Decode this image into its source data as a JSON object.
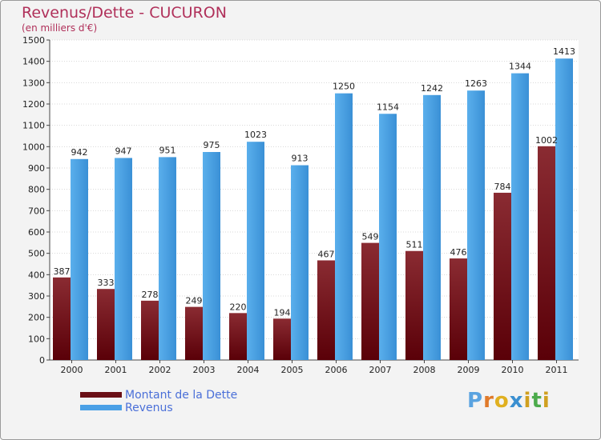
{
  "chart_data": {
    "type": "bar",
    "title": "Revenus/Dette - CUCURON",
    "subtitle": "(en milliers d'€)",
    "categories": [
      "2000",
      "2001",
      "2002",
      "2003",
      "2004",
      "2005",
      "2006",
      "2007",
      "2008",
      "2009",
      "2010",
      "2011"
    ],
    "series": [
      {
        "name": "Montant de la Dette",
        "color": "#7a1f26",
        "values": [
          387,
          333,
          278,
          249,
          220,
          194,
          467,
          549,
          511,
          476,
          784,
          1002
        ]
      },
      {
        "name": "Revenus",
        "color": "#4aa0e6",
        "values": [
          942,
          947,
          951,
          975,
          1023,
          913,
          1250,
          1154,
          1242,
          1263,
          1344,
          1413
        ]
      }
    ],
    "yticks": [
      0,
      100,
      200,
      300,
      400,
      500,
      600,
      700,
      800,
      900,
      1000,
      1100,
      1200,
      1300,
      1400,
      1500
    ],
    "ylim": [
      0,
      1500
    ],
    "grid": true,
    "legend_position": "bottom-left"
  },
  "brand": {
    "letters": [
      "P",
      "r",
      "o",
      "x",
      "i",
      "t",
      "i"
    ],
    "colors": [
      "#5aa3e0",
      "#e07a2a",
      "#e0b020",
      "#3a8fd0",
      "#d0a020",
      "#4cab4c",
      "#d0a020"
    ]
  }
}
